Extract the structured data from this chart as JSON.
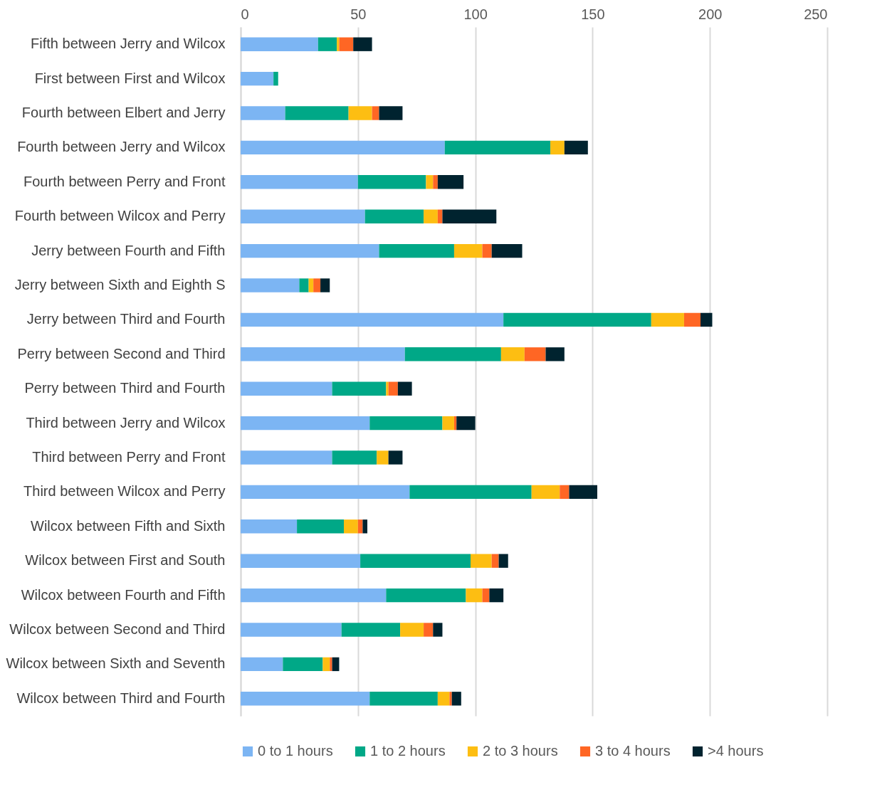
{
  "chart_data": {
    "type": "bar",
    "orientation": "horizontal",
    "stacked": true,
    "categories": [
      "Fifth between Jerry and Wilcox",
      "First between First and Wilcox",
      "Fourth between Elbert and Jerry",
      "Fourth between Jerry and Wilcox",
      "Fourth between Perry and Front",
      "Fourth between Wilcox and Perry",
      "Jerry between Fourth and Fifth",
      "Jerry between Sixth and Eighth S",
      "Jerry between Third and Fourth",
      "Perry between Second and Third",
      "Perry between Third and Fourth",
      "Third between Jerry and Wilcox",
      "Third between Perry and Front",
      "Third between Wilcox and Perry",
      "Wilcox between Fifth and Sixth",
      "Wilcox between First and South",
      "Wilcox between Fourth and Fifth",
      "Wilcox between Second and Third",
      "Wilcox between Sixth and Seventh",
      "Wilcox between Third and Fourth"
    ],
    "series": [
      {
        "name": "0 to 1 hours",
        "color": "#7cb5f3",
        "values": [
          33,
          14,
          19,
          87,
          50,
          53,
          59,
          25,
          112,
          70,
          39,
          55,
          39,
          72,
          24,
          51,
          62,
          43,
          18,
          55
        ]
      },
      {
        "name": "1 to 2 hours",
        "color": "#00a887",
        "values": [
          8,
          2,
          27,
          45,
          29,
          25,
          32,
          4,
          63,
          41,
          23,
          31,
          19,
          52,
          20,
          47,
          34,
          25,
          17,
          29
        ]
      },
      {
        "name": "2 to 3 hours",
        "color": "#fdbe12",
        "values": [
          1,
          0,
          10,
          6,
          3,
          6,
          12,
          2,
          14,
          10,
          1,
          5,
          5,
          12,
          6,
          9,
          7,
          10,
          3,
          5
        ]
      },
      {
        "name": "3 to 4 hours",
        "color": "#ff6624",
        "values": [
          6,
          0,
          3,
          0,
          2,
          2,
          4,
          3,
          7,
          9,
          4,
          1,
          0,
          4,
          2,
          3,
          3,
          4,
          1,
          1
        ]
      },
      {
        "name": ">4 hours",
        "color": "#00232f",
        "values": [
          8,
          0,
          10,
          10,
          11,
          23,
          13,
          4,
          5,
          8,
          6,
          8,
          6,
          12,
          2,
          4,
          6,
          4,
          3,
          4
        ]
      }
    ],
    "xlim": [
      0,
      250
    ],
    "xticks": [
      0,
      50,
      100,
      150,
      200,
      250
    ],
    "grid": "x",
    "legend": "bottom"
  }
}
